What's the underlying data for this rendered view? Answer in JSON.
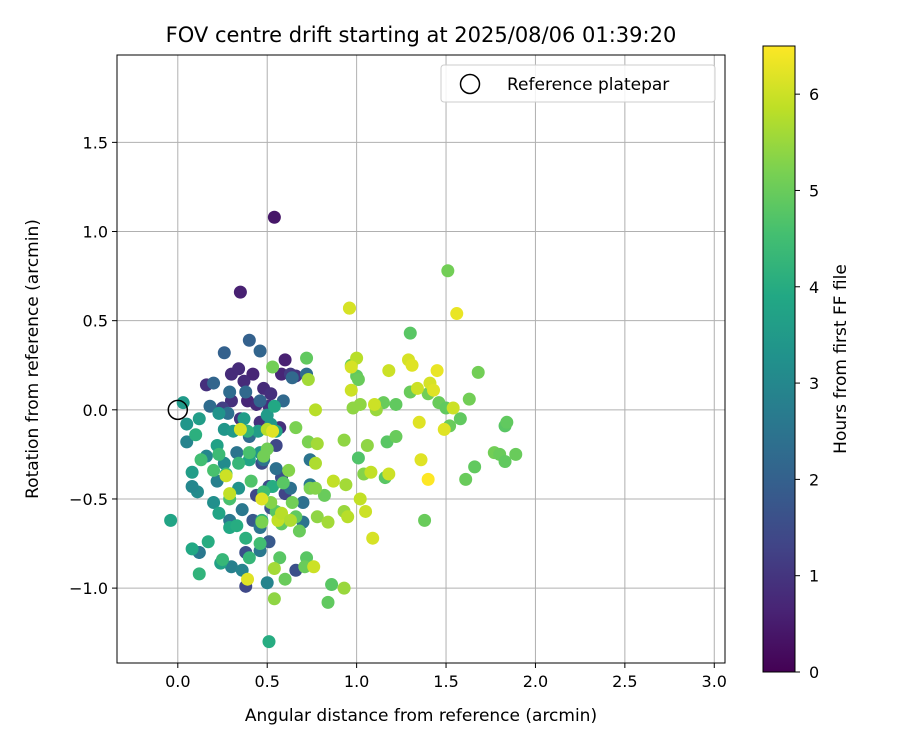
{
  "chart_data": {
    "type": "scatter",
    "title": "FOV centre drift starting at 2025/08/06 01:39:20",
    "xlabel": "Angular distance from reference (arcmin)",
    "ylabel": "Rotation from reference (arcmin)",
    "xlim": [
      -0.34,
      3.06
    ],
    "ylim": [
      -1.42,
      1.99
    ],
    "xticks": [
      0.0,
      0.5,
      1.0,
      1.5,
      2.0,
      2.5,
      3.0
    ],
    "xtick_labels": [
      "0.0",
      "0.5",
      "1.0",
      "1.5",
      "2.0",
      "2.5",
      "3.0"
    ],
    "yticks": [
      -1.0,
      -0.5,
      0.0,
      0.5,
      1.0,
      1.5
    ],
    "ytick_labels": [
      "−1.0",
      "−0.5",
      "0.0",
      "0.5",
      "1.0",
      "1.5"
    ],
    "grid": true,
    "legend": {
      "position": "top-right",
      "entries": [
        "Reference platepar"
      ]
    },
    "reference_point": {
      "x": 0.0,
      "y": 0.0
    },
    "colorbar": {
      "label": "Hours from first FF file",
      "range": [
        0,
        6.5
      ],
      "ticks": [
        0,
        1,
        2,
        3,
        4,
        5,
        6
      ],
      "tick_labels": [
        "0",
        "1",
        "2",
        "3",
        "4",
        "5",
        "6"
      ],
      "colormap": "viridis"
    },
    "points": [
      [
        0.54,
        1.08,
        0.4
      ],
      [
        0.35,
        0.66,
        0.6
      ],
      [
        0.6,
        0.28,
        0.6
      ],
      [
        0.58,
        0.2,
        0.7
      ],
      [
        0.3,
        0.2,
        0.8
      ],
      [
        0.34,
        0.23,
        0.8
      ],
      [
        0.42,
        0.2,
        0.7
      ],
      [
        0.16,
        0.14,
        0.9
      ],
      [
        0.37,
        0.16,
        0.8
      ],
      [
        0.48,
        0.12,
        0.8
      ],
      [
        0.52,
        0.09,
        0.9
      ],
      [
        0.63,
        0.2,
        1.1
      ],
      [
        0.66,
        0.19,
        1.0
      ],
      [
        0.3,
        0.05,
        0.9
      ],
      [
        0.39,
        0.05,
        0.7
      ],
      [
        0.44,
        0.03,
        0.8
      ],
      [
        0.51,
        0.02,
        0.9
      ],
      [
        0.35,
        -0.05,
        1.0
      ],
      [
        0.25,
        0.01,
        1.2
      ],
      [
        0.46,
        -0.07,
        0.9
      ],
      [
        0.57,
        -0.1,
        0.9
      ],
      [
        0.4,
        -0.14,
        1.3
      ],
      [
        0.55,
        -0.2,
        1.4
      ],
      [
        0.47,
        -0.3,
        1.5
      ],
      [
        0.58,
        -0.38,
        1.6
      ],
      [
        0.51,
        -0.43,
        1.5
      ],
      [
        0.44,
        -0.48,
        1.4
      ],
      [
        0.6,
        -0.47,
        1.3
      ],
      [
        0.52,
        -0.55,
        1.7
      ],
      [
        0.42,
        -0.62,
        1.8
      ],
      [
        0.38,
        -0.8,
        1.6
      ],
      [
        0.38,
        -0.99,
        1.4
      ],
      [
        0.66,
        -0.9,
        1.6
      ],
      [
        0.51,
        -0.74,
        1.8
      ],
      [
        0.26,
        0.32,
        2.0
      ],
      [
        0.4,
        0.39,
        2.0
      ],
      [
        0.46,
        0.33,
        2.1
      ],
      [
        0.2,
        0.15,
        2.1
      ],
      [
        0.29,
        0.1,
        2.3
      ],
      [
        0.38,
        0.1,
        2.2
      ],
      [
        0.46,
        0.05,
        2.1
      ],
      [
        0.59,
        0.05,
        2.2
      ],
      [
        0.64,
        0.18,
        2.2
      ],
      [
        0.72,
        0.2,
        2.3
      ],
      [
        0.18,
        0.02,
        2.3
      ],
      [
        0.28,
        -0.02,
        2.4
      ],
      [
        0.4,
        -0.15,
        2.3
      ],
      [
        0.33,
        -0.24,
        2.5
      ],
      [
        0.48,
        -0.28,
        2.5
      ],
      [
        0.55,
        -0.33,
        2.4
      ],
      [
        0.63,
        -0.44,
        2.4
      ],
      [
        0.7,
        -0.52,
        2.4
      ],
      [
        0.74,
        -0.28,
        2.5
      ],
      [
        0.74,
        -0.42,
        2.6
      ],
      [
        0.36,
        -0.56,
        2.6
      ],
      [
        0.29,
        -0.62,
        2.6
      ],
      [
        0.12,
        -0.8,
        2.7
      ],
      [
        0.46,
        -0.79,
        2.6
      ],
      [
        0.12,
        -0.8,
        2.6
      ],
      [
        0.3,
        -0.88,
        2.8
      ],
      [
        0.36,
        -0.9,
        2.9
      ],
      [
        0.5,
        -0.97,
        2.9
      ],
      [
        0.7,
        -0.63,
        2.5
      ],
      [
        0.46,
        -0.66,
        2.5
      ],
      [
        0.22,
        -0.4,
        2.8
      ],
      [
        0.05,
        -0.18,
        2.9
      ],
      [
        0.16,
        -0.26,
        3.0
      ],
      [
        0.26,
        -0.3,
        3.1
      ],
      [
        0.11,
        -0.46,
        3.1
      ],
      [
        0.08,
        -0.43,
        3.0
      ],
      [
        0.2,
        -0.52,
        3.2
      ],
      [
        0.34,
        -0.44,
        3.3
      ],
      [
        0.46,
        -0.24,
        3.4
      ],
      [
        0.52,
        -0.08,
        3.4
      ],
      [
        0.5,
        -0.03,
        3.5
      ],
      [
        0.23,
        -0.02,
        3.3
      ],
      [
        0.26,
        -0.11,
        3.4
      ],
      [
        0.37,
        -0.05,
        3.6
      ],
      [
        0.45,
        -0.12,
        3.6
      ],
      [
        0.03,
        0.04,
        3.5
      ],
      [
        0.05,
        -0.08,
        3.4
      ],
      [
        0.12,
        -0.05,
        3.6
      ],
      [
        0.22,
        -0.2,
        3.7
      ],
      [
        0.31,
        -0.12,
        3.5
      ],
      [
        0.4,
        -0.28,
        3.8
      ],
      [
        0.08,
        -0.35,
        3.6
      ],
      [
        0.23,
        -0.58,
        3.8
      ],
      [
        0.29,
        -0.66,
        3.9
      ],
      [
        0.24,
        -0.86,
        3.7
      ],
      [
        0.17,
        -0.74,
        4.0
      ],
      [
        0.08,
        -0.78,
        3.9
      ],
      [
        0.33,
        -0.65,
        4.0
      ],
      [
        0.38,
        -0.72,
        4.1
      ],
      [
        0.47,
        -0.62,
        4.1
      ],
      [
        0.53,
        -0.43,
        4.0
      ],
      [
        0.55,
        -0.12,
        3.8
      ],
      [
        0.54,
        0.02,
        3.9
      ],
      [
        -0.04,
        -0.62,
        3.8
      ],
      [
        0.12,
        -0.92,
        4.2
      ],
      [
        0.25,
        -0.84,
        4.3
      ],
      [
        0.51,
        -1.3,
        4.0
      ],
      [
        0.4,
        -0.83,
        4.3
      ],
      [
        0.46,
        -0.75,
        4.5
      ],
      [
        0.39,
        -0.12,
        4.2
      ],
      [
        0.34,
        -0.3,
        4.3
      ],
      [
        0.1,
        -0.14,
        4.1
      ],
      [
        0.23,
        -0.25,
        4.4
      ],
      [
        0.13,
        -0.28,
        4.5
      ],
      [
        0.27,
        -0.36,
        4.4
      ],
      [
        0.2,
        -0.34,
        4.6
      ],
      [
        0.29,
        -0.5,
        4.6
      ],
      [
        0.4,
        -0.24,
        4.6
      ],
      [
        0.41,
        -0.4,
        4.7
      ],
      [
        0.48,
        -0.46,
        4.5
      ],
      [
        0.59,
        -0.41,
        4.8
      ],
      [
        0.55,
        -0.57,
        4.8
      ],
      [
        0.58,
        -0.64,
        4.9
      ],
      [
        0.66,
        -0.6,
        4.9
      ],
      [
        0.68,
        -0.68,
        5.0
      ],
      [
        0.72,
        -0.83,
        4.8
      ],
      [
        0.71,
        -0.88,
        5.0
      ],
      [
        0.57,
        -0.83,
        4.8
      ],
      [
        0.6,
        -0.95,
        5.0
      ],
      [
        0.84,
        -1.08,
        4.9
      ],
      [
        0.86,
        -0.98,
        4.8
      ],
      [
        0.53,
        0.24,
        5.1
      ],
      [
        0.72,
        0.29,
        4.9
      ],
      [
        0.82,
        -0.48,
        5.0
      ],
      [
        0.74,
        -0.44,
        5.2
      ],
      [
        0.66,
        -0.1,
        5.2
      ],
      [
        0.73,
        -0.18,
        5.2
      ],
      [
        0.62,
        -0.34,
        5.3
      ],
      [
        0.47,
        -0.63,
        5.2
      ],
      [
        0.64,
        -0.52,
        5.1
      ],
      [
        0.52,
        -0.52,
        5.3
      ],
      [
        0.5,
        -0.22,
        5.1
      ],
      [
        0.48,
        -0.26,
        5.1
      ],
      [
        1.0,
        0.19,
        4.9
      ],
      [
        0.97,
        0.25,
        4.9
      ],
      [
        1.01,
        0.17,
        5.0
      ],
      [
        1.15,
        0.04,
        5.0
      ],
      [
        1.17,
        -0.18,
        4.8
      ],
      [
        1.22,
        -0.15,
        5.0
      ],
      [
        1.22,
        0.03,
        4.9
      ],
      [
        1.3,
        0.43,
        4.8
      ],
      [
        1.3,
        0.1,
        5.0
      ],
      [
        1.4,
        0.09,
        5.1
      ],
      [
        1.46,
        0.04,
        5.0
      ],
      [
        1.5,
        0.01,
        4.9
      ],
      [
        1.52,
        -0.09,
        5.0
      ],
      [
        1.58,
        -0.05,
        4.9
      ],
      [
        1.63,
        0.06,
        5.1
      ],
      [
        1.68,
        0.21,
        5.1
      ],
      [
        1.51,
        0.78,
        5.1
      ],
      [
        1.61,
        -0.39,
        5.0
      ],
      [
        1.66,
        -0.32,
        4.9
      ],
      [
        1.77,
        -0.24,
        5.1
      ],
      [
        1.8,
        -0.25,
        5.0
      ],
      [
        1.83,
        -0.29,
        4.9
      ],
      [
        1.83,
        -0.09,
        4.8
      ],
      [
        1.84,
        -0.07,
        4.9
      ],
      [
        1.89,
        -0.25,
        5.0
      ],
      [
        1.38,
        -0.62,
        5.0
      ],
      [
        1.16,
        -0.38,
        4.8
      ],
      [
        1.01,
        -0.27,
        4.7
      ],
      [
        1.04,
        -0.36,
        5.3
      ],
      [
        0.98,
        0.01,
        5.4
      ],
      [
        1.02,
        0.03,
        5.4
      ],
      [
        1.11,
        0.0,
        5.5
      ],
      [
        1.06,
        -0.2,
        5.4
      ],
      [
        0.93,
        -0.17,
        5.4
      ],
      [
        0.94,
        -0.42,
        5.6
      ],
      [
        0.93,
        -0.57,
        5.5
      ],
      [
        0.93,
        -1.0,
        5.5
      ],
      [
        0.78,
        -0.6,
        5.4
      ],
      [
        0.84,
        -0.63,
        5.6
      ],
      [
        0.77,
        -0.3,
        5.7
      ],
      [
        0.77,
        -0.44,
        5.3
      ],
      [
        0.78,
        -0.19,
        5.6
      ],
      [
        0.77,
        0.0,
        5.8
      ],
      [
        0.73,
        0.17,
        5.6
      ],
      [
        0.95,
        -0.6,
        5.8
      ],
      [
        0.87,
        -0.4,
        5.9
      ],
      [
        1.08,
        -0.35,
        5.9
      ],
      [
        1.02,
        -0.5,
        5.9
      ],
      [
        1.05,
        -0.57,
        6.0
      ],
      [
        1.09,
        -0.72,
        6.1
      ],
      [
        0.76,
        -0.88,
        6.0
      ],
      [
        1.0,
        0.29,
        5.8
      ],
      [
        1.18,
        0.22,
        6.0
      ],
      [
        1.1,
        0.03,
        6.0
      ],
      [
        1.18,
        -0.36,
        6.0
      ],
      [
        0.96,
        0.57,
        6.0
      ],
      [
        0.97,
        0.11,
        6.0
      ],
      [
        0.97,
        0.24,
        6.1
      ],
      [
        1.29,
        0.28,
        6.1
      ],
      [
        1.31,
        0.25,
        6.2
      ],
      [
        1.34,
        0.12,
        6.0
      ],
      [
        1.41,
        0.15,
        6.1
      ],
      [
        1.45,
        0.22,
        6.3
      ],
      [
        1.36,
        -0.28,
        6.2
      ],
      [
        1.49,
        -0.11,
        6.2
      ],
      [
        1.35,
        -0.07,
        6.2
      ],
      [
        1.56,
        0.54,
        6.3
      ],
      [
        1.4,
        -0.39,
        6.5
      ],
      [
        1.43,
        0.11,
        6.2
      ],
      [
        1.54,
        0.01,
        6.0
      ],
      [
        0.96,
        0.57,
        6.1
      ],
      [
        0.54,
        -0.89,
        5.6
      ],
      [
        0.54,
        -1.06,
        5.4
      ],
      [
        0.39,
        -0.95,
        6.2
      ],
      [
        0.27,
        -0.37,
        6.0
      ],
      [
        0.56,
        -0.62,
        5.9
      ],
      [
        0.58,
        -0.58,
        5.8
      ],
      [
        0.5,
        -0.11,
        5.8
      ],
      [
        0.35,
        -0.11,
        6.1
      ],
      [
        0.53,
        -0.12,
        6.2
      ],
      [
        0.29,
        -0.47,
        5.9
      ],
      [
        0.47,
        -0.5,
        6.2
      ],
      [
        0.63,
        -0.62,
        5.7
      ]
    ]
  }
}
